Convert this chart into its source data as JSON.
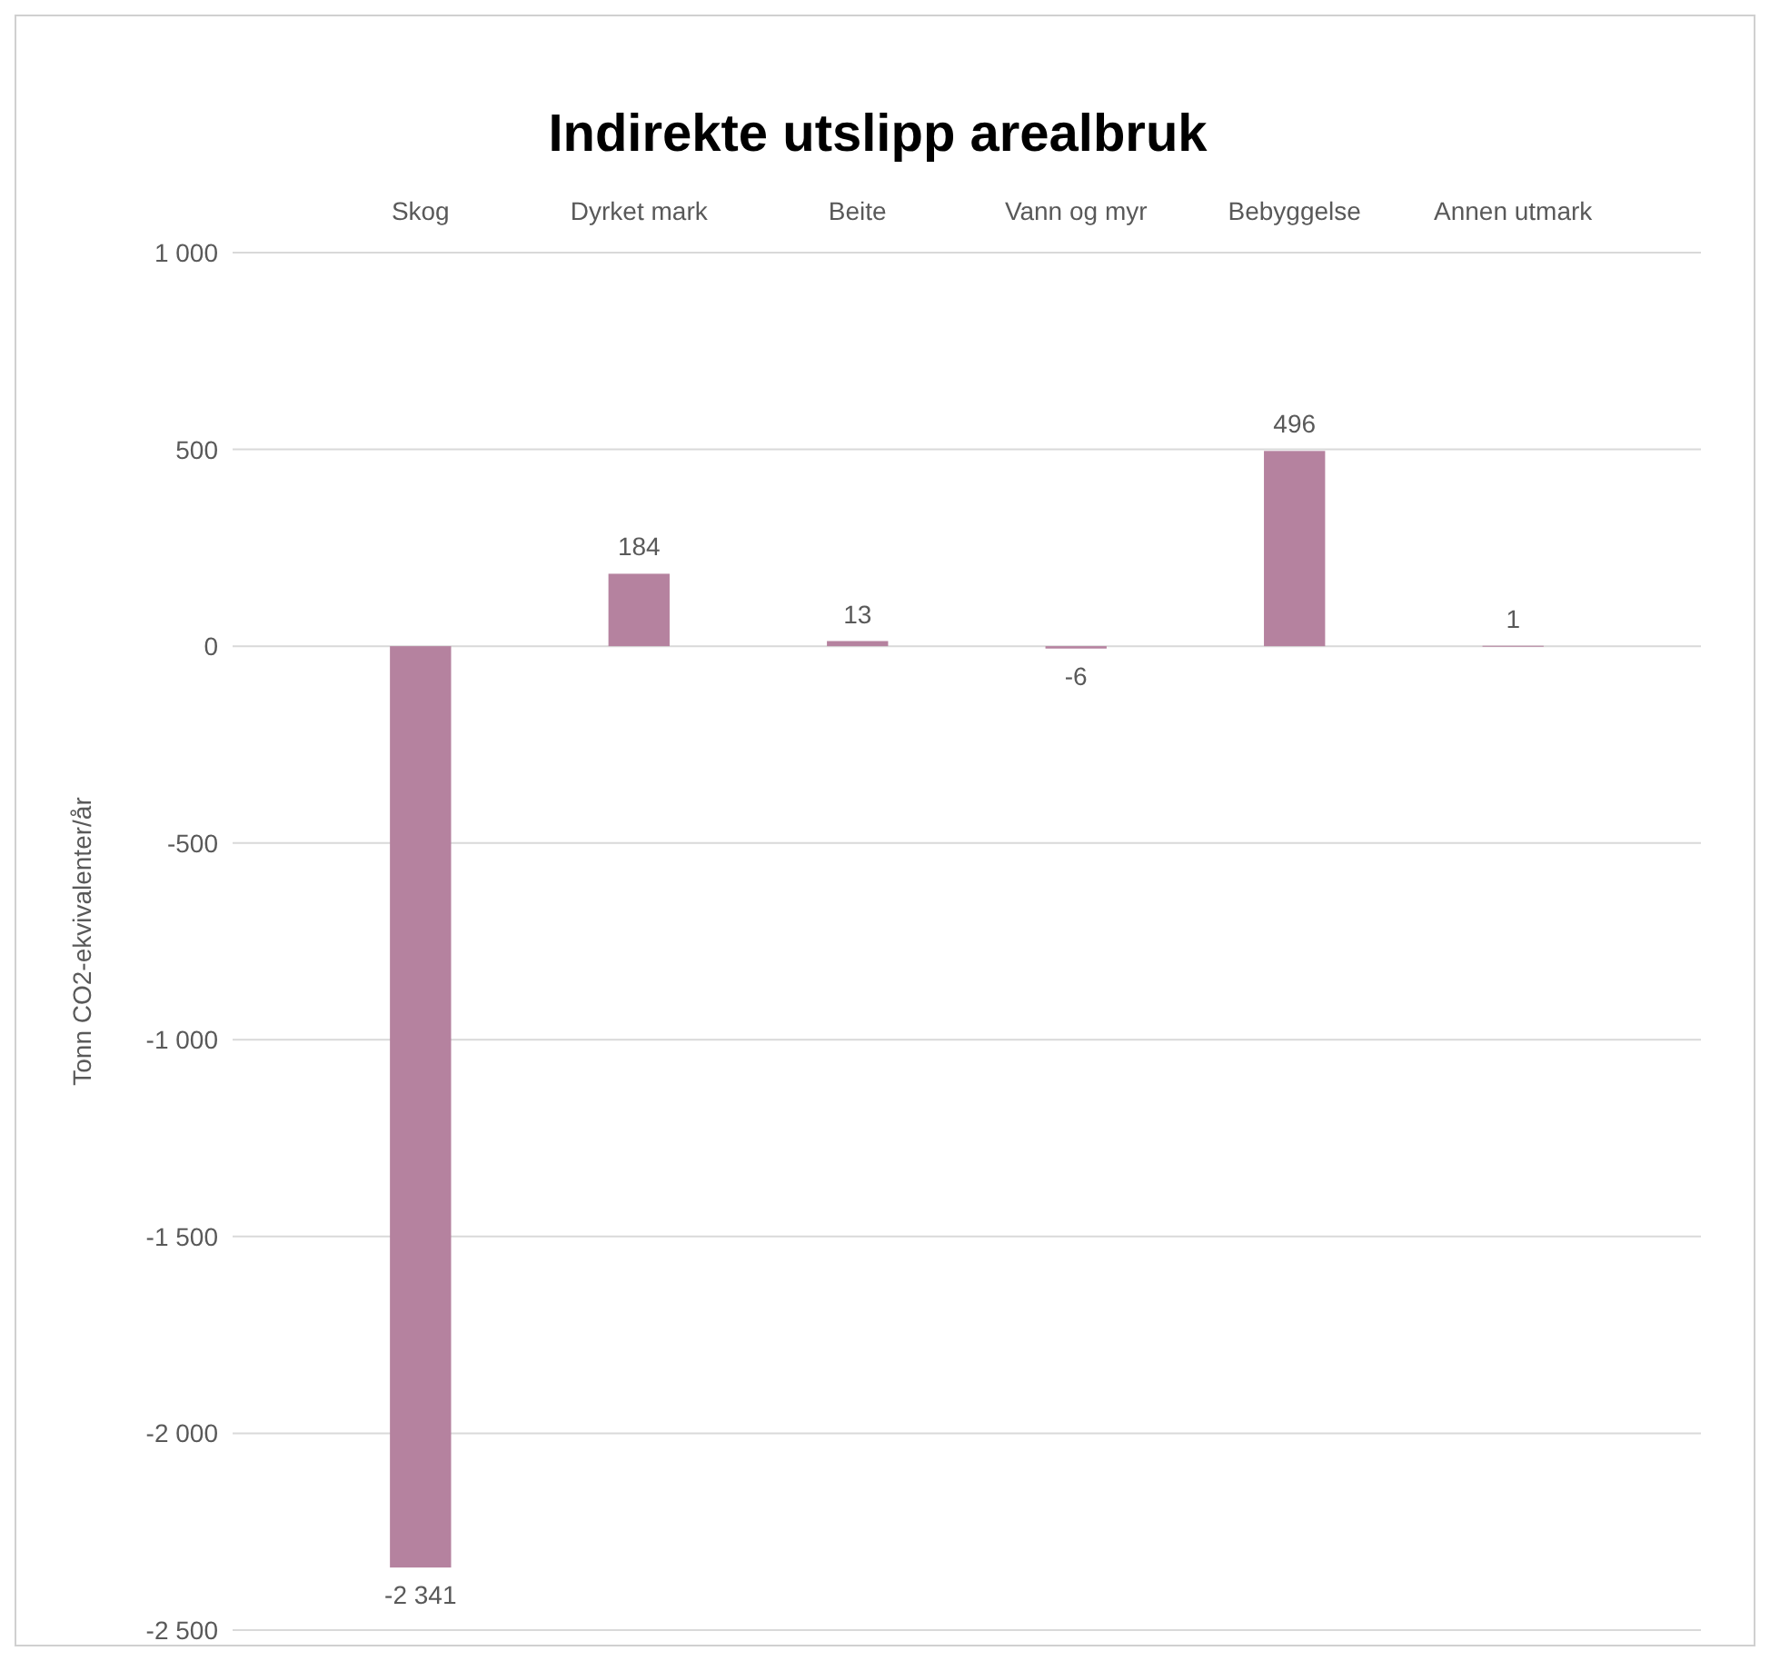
{
  "chart_data": {
    "type": "bar",
    "title": "Indirekte utslipp arealbruk",
    "ylabel": "Tonn CO2-ekvivalenter/år",
    "categories": [
      "Skog",
      "Dyrket mark",
      "Beite",
      "Vann og myr",
      "Bebyggelse",
      "Annen utmark"
    ],
    "values": [
      -2341,
      184,
      13,
      -6,
      496,
      1
    ],
    "value_labels": [
      "-2 341",
      "184",
      "13",
      "-6",
      "496",
      "1"
    ],
    "color": "#b5829f",
    "ylim": [
      -2500,
      1000
    ],
    "yticks": [
      {
        "value": 1000,
        "label": "1 000"
      },
      500,
      0,
      -500,
      {
        "value": -1000,
        "label": "-1 000"
      },
      {
        "value": -1500,
        "label": "-1 500"
      },
      {
        "value": -2000,
        "label": "-2 000"
      },
      {
        "value": -2500,
        "label": "-2 500"
      }
    ],
    "grid": "y"
  }
}
